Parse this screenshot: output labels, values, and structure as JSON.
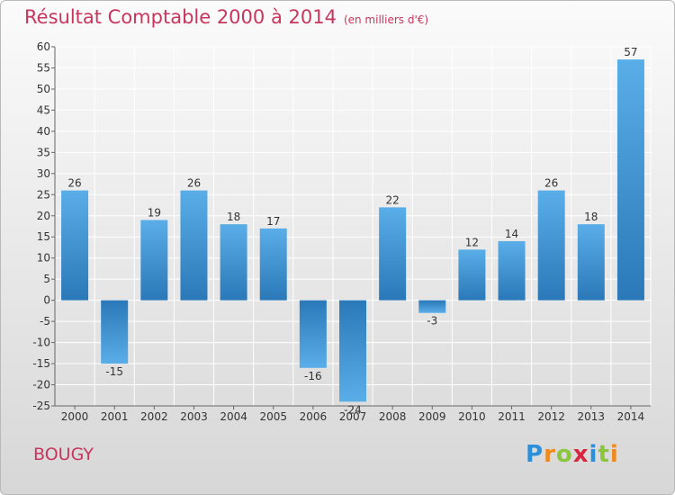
{
  "chart_data": {
    "type": "bar",
    "title": "Résultat Comptable 2000 à 2014",
    "subtitle": "(en milliers d'€)",
    "categories": [
      "2000",
      "2001",
      "2002",
      "2003",
      "2004",
      "2005",
      "2006",
      "2007",
      "2008",
      "2009",
      "2010",
      "2011",
      "2012",
      "2013",
      "2014"
    ],
    "values": [
      26,
      -15,
      19,
      26,
      18,
      17,
      -16,
      -24,
      22,
      -3,
      12,
      14,
      26,
      18,
      57
    ],
    "data_labels": [
      "26",
      "-15",
      "19",
      "26",
      "18",
      "17",
      "-16",
      "-24",
      "22",
      "-3",
      "12",
      "14",
      "26",
      "18",
      "57"
    ],
    "ylim": [
      -25,
      60
    ],
    "yticks": [
      -25,
      -20,
      -15,
      -10,
      -5,
      0,
      5,
      10,
      15,
      20,
      25,
      30,
      35,
      40,
      45,
      50,
      55,
      60
    ],
    "grid": true,
    "bar_color": "#3a8fd0",
    "xlabel": "",
    "ylabel": ""
  },
  "commune": "BOUGY",
  "logo": {
    "text": "Proxiti",
    "letters": [
      "P",
      "r",
      "o",
      "x",
      "i",
      "t",
      "i"
    ],
    "colors": [
      "#2b8fd9",
      "#f08a1c",
      "#8cc63f",
      "#d7263d",
      "#2b8fd9",
      "#8cc63f",
      "#f08a1c"
    ]
  },
  "colors": {
    "title": "#c7365d",
    "grid": "#ffffff",
    "axis": "#666666"
  }
}
